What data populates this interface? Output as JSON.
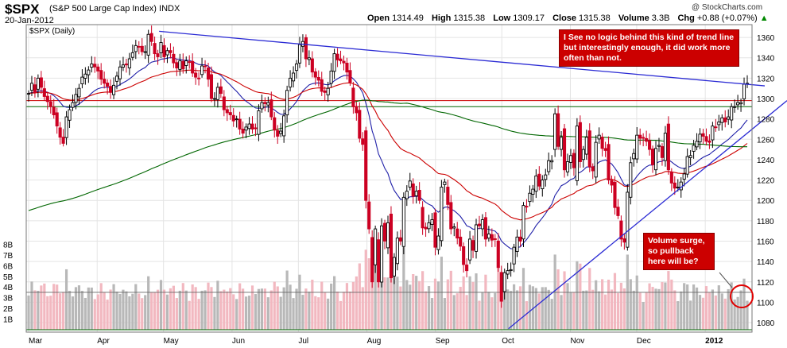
{
  "header": {
    "symbol": "$SPX",
    "full_name": "(S&P 500 Large Cap Index)",
    "exchange": "INDX",
    "date": "20-Jan-2012",
    "copyright": "@ StockCharts.com",
    "open_label": "Open",
    "open": "1314.49",
    "high_label": "High",
    "high": "1315.38",
    "low_label": "Low",
    "low": "1309.17",
    "close_label": "Close",
    "close": "1315.38",
    "volume_label": "Volume",
    "volume": "3.3B",
    "chg_label": "Chg",
    "chg": "+0.88 (+0.07%)",
    "chg_arrow": "▲"
  },
  "chart_data": {
    "type": "candlestick",
    "title": "$SPX (Daily)",
    "price_axis_ticks": [
      1080,
      1100,
      1120,
      1140,
      1160,
      1180,
      1200,
      1220,
      1240,
      1260,
      1280,
      1300,
      1320,
      1340,
      1360
    ],
    "ylim": [
      1073,
      1371
    ],
    "volume_axis_ticks": [
      "1B",
      "2B",
      "3B",
      "4B",
      "5B",
      "6B",
      "7B",
      "8B"
    ],
    "volume_lim": [
      0,
      8.7
    ],
    "x_ticks": [
      "Mar",
      "Apr",
      "May",
      "Jun",
      "Jul",
      "Aug",
      "Sep",
      "Oct",
      "Nov",
      "Dec",
      "2012"
    ],
    "date_range": [
      "2011-03-01",
      "2012-01-20"
    ],
    "closes_approx": [
      1305,
      1315,
      1306,
      1320,
      1311,
      1302,
      1297,
      1292,
      1284,
      1273,
      1262,
      1256,
      1282,
      1289,
      1296,
      1304,
      1310,
      1321,
      1324,
      1328,
      1334,
      1331,
      1327,
      1319,
      1315,
      1312,
      1306,
      1313,
      1322,
      1331,
      1333,
      1333,
      1339,
      1345,
      1352,
      1351,
      1346,
      1346,
      1363,
      1356,
      1344,
      1341,
      1355,
      1341,
      1347,
      1345,
      1335,
      1330,
      1337,
      1329,
      1337,
      1336,
      1325,
      1321,
      1320,
      1332,
      1332,
      1319,
      1300,
      1300,
      1311,
      1305,
      1289,
      1286,
      1284,
      1278,
      1280,
      1270,
      1266,
      1272,
      1275,
      1270,
      1271,
      1288,
      1296,
      1295,
      1296,
      1282,
      1269,
      1263,
      1268,
      1283,
      1308,
      1320,
      1325,
      1334,
      1353,
      1356,
      1339,
      1340,
      1326,
      1321,
      1318,
      1307,
      1306,
      1310,
      1327,
      1344,
      1338,
      1337,
      1335,
      1326,
      1316,
      1292,
      1286,
      1261,
      1255,
      1200,
      1172,
      1120,
      1172,
      1120,
      1175,
      1160,
      1178,
      1124,
      1144,
      1163,
      1160,
      1203,
      1209,
      1219,
      1204,
      1209,
      1200,
      1173,
      1172,
      1178,
      1181,
      1154,
      1165,
      1213,
      1218,
      1196,
      1172,
      1174,
      1163,
      1155,
      1137,
      1131,
      1162,
      1151,
      1176,
      1175,
      1181,
      1162,
      1167,
      1161,
      1162,
      1134,
      1101,
      1129,
      1131,
      1132,
      1154,
      1164,
      1160,
      1195,
      1194,
      1207,
      1211,
      1224,
      1214,
      1220,
      1225,
      1239,
      1239,
      1285,
      1253,
      1262,
      1230,
      1238,
      1244,
      1232,
      1273,
      1238,
      1250,
      1262,
      1233,
      1229,
      1257,
      1264,
      1251,
      1249,
      1220,
      1215,
      1193,
      1185,
      1162,
      1159,
      1208,
      1237,
      1246,
      1264,
      1261,
      1261,
      1258,
      1250,
      1235,
      1251,
      1254,
      1242,
      1266,
      1230,
      1217,
      1212,
      1213,
      1218,
      1226,
      1243,
      1244,
      1254,
      1258,
      1265,
      1263,
      1258,
      1257,
      1273,
      1272,
      1277,
      1281,
      1277,
      1282,
      1292,
      1292,
      1296,
      1296,
      1314,
      1315
    ],
    "moving_averages": [
      {
        "name": "EMA(20) blue",
        "color": "#1f1fa8"
      },
      {
        "name": "EMA(50) red",
        "color": "#cc0000"
      },
      {
        "name": "SMA(200) green",
        "color": "#006600"
      }
    ],
    "volume_overlay_level_approx": "~3.5B",
    "trendlines": [
      {
        "name": "descending resistance",
        "color": "#2b2bd4",
        "from": [
          "2011-04-29",
          1366
        ],
        "to": [
          "2012-01-20",
          1314
        ]
      },
      {
        "name": "ascending support",
        "color": "#2b2bd4",
        "from": [
          "2011-10-04",
          1074
        ],
        "to": [
          "2012-01-20",
          1266
        ]
      }
    ],
    "horizontal_lines": [
      {
        "color": "#cc0000",
        "value": 1298
      },
      {
        "color": "#006600",
        "value": 1292
      }
    ],
    "annotations": [
      "I See no logic behind this kind of trend line but interestingly enough, it did work more often than not.",
      "Volume surge, so pullback here will be?"
    ]
  },
  "notes": {
    "trend": "I See no logic behind this kind of trend line but interestingly enough, it did work more often than not.",
    "volume": "Volume surge, so pullback here will be?"
  },
  "colors": {
    "up_candle": "#000000",
    "down_candle": "#cc0022",
    "volume_up": "#b8b8b8",
    "volume_down": "#f2b8c0",
    "note_bg": "#cc0000"
  }
}
